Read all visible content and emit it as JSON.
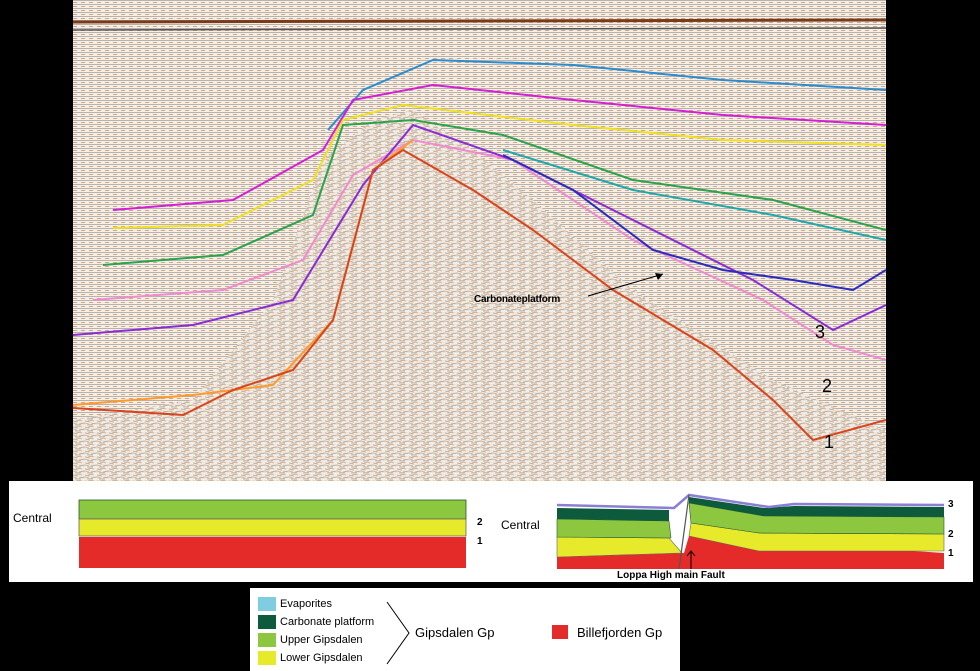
{
  "seismic": {
    "annotation": "Carbonateplatform",
    "horizon_labels": [
      "3",
      "2",
      "1"
    ]
  },
  "left_panel": {
    "label": "Central",
    "horizon_labels": [
      "2",
      "1"
    ]
  },
  "right_panel": {
    "label": "Central",
    "horizon_labels": [
      "3",
      "2",
      "1"
    ],
    "fault_label": "Loppa High main Fault"
  },
  "legend": {
    "items": [
      {
        "label": "Evaporites",
        "color": "#7fcde0"
      },
      {
        "label": "Carbonate platform",
        "color": "#0d5a3c"
      },
      {
        "label": "Upper Gipsdalen",
        "color": "#8dc63f"
      },
      {
        "label": "Lower Gipsdalen",
        "color": "#e6ea2a"
      }
    ],
    "group_gipsdalen": "Gipsdalen Gp",
    "group_billefjorden": "Billefjorden Gp",
    "billefjorden_color": "#e52a2a"
  }
}
